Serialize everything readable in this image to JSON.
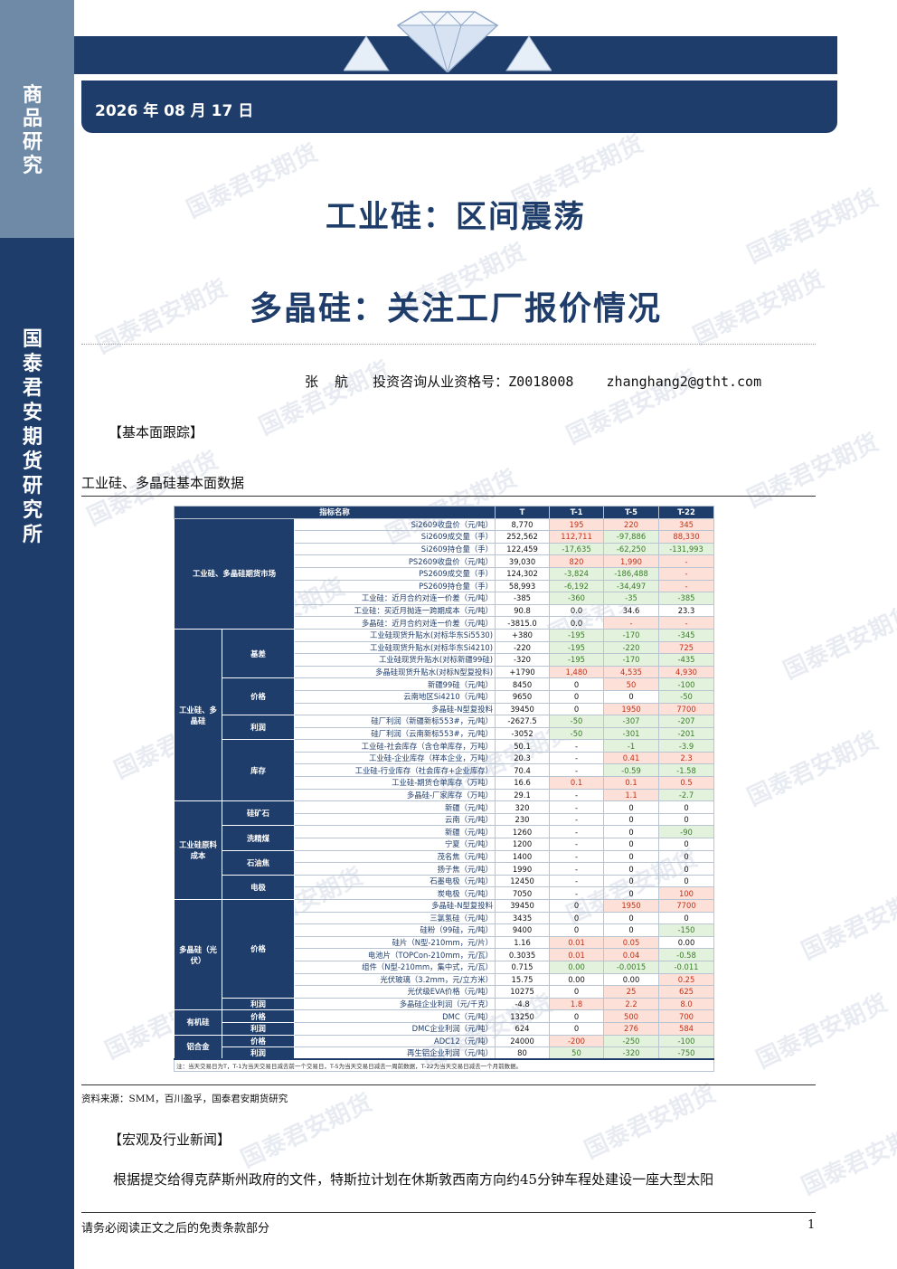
{
  "sidebar": {
    "label_top": "商品研究",
    "label_bottom": "国泰君安期货研究所"
  },
  "header": {
    "date": "2026 年 08 月 17 日"
  },
  "titles": {
    "main": "工业硅：区间震荡",
    "sub": "多晶硅：关注工厂报价情况"
  },
  "author": {
    "line": "张  航   投资咨询从业资格号：Z0018008    zhanghang2@gtht.com"
  },
  "sections": {
    "fundamentals": "【基本面跟踪】",
    "macro": "【宏观及行业新闻】"
  },
  "table_caption": "工业硅、多晶硅基本面数据",
  "table": {
    "headers": [
      "指标名称",
      "T",
      "T-1",
      "T-5",
      "T-22"
    ],
    "cat_futures": "工业硅、多晶硅期货市场",
    "cat_industrial_poly": "工业硅、多晶硅",
    "cat_raw_cost": "工业硅原料成本",
    "cat_poly_pv": "多晶硅（光伏）",
    "cat_organic": "有机硅",
    "cat_aluminum": "铝合金",
    "sub_basis": "基差",
    "sub_price_1": "价格",
    "sub_profit_1": "利润",
    "sub_inventory": "库存",
    "sub_silica": "硅矿石",
    "sub_coal": "洗精煤",
    "sub_coke": "石油焦",
    "sub_electrode": "电极",
    "sub_price_2": "价格",
    "sub_profit_2": "利润",
    "sub_price_3": "价格",
    "sub_profit_3": "利润",
    "sub_price_4": "价格",
    "sub_profit_4": "利润",
    "rows": [
      [
        "Si2609收盘价（元/吨）",
        "8,770",
        "195",
        "220",
        "345"
      ],
      [
        "Si2609成交量（手）",
        "252,562",
        "112,711",
        "-97,886",
        "88,330"
      ],
      [
        "Si2609持仓量（手）",
        "122,459",
        "-17,635",
        "-62,250",
        "-131,993"
      ],
      [
        "PS2609收盘价（元/吨）",
        "39,030",
        "820",
        "1,990",
        "-"
      ],
      [
        "PS2609成交量（手）",
        "124,302",
        "-3,824",
        "-186,488",
        "-"
      ],
      [
        "PS2609持仓量（手）",
        "58,993",
        "-6,192",
        "-34,497",
        "-"
      ],
      [
        "工业硅：近月合约对连一价差（元/吨）",
        "-385",
        "-360",
        "-35",
        "-385"
      ],
      [
        "工业硅：买近月抛连一跨期成本（元/吨）",
        "90.8",
        "0.0",
        "34.6",
        "23.3"
      ],
      [
        "多晶硅：近月合约对连一价差（元/吨）",
        "-3815.0",
        "0.0",
        "-",
        "-"
      ],
      [
        "工业硅现货升贴水(对标华东Si5530)",
        "+380",
        "-195",
        "-170",
        "-345"
      ],
      [
        "工业硅现货升贴水(对标华东Si4210)",
        "-220",
        "-195",
        "-220",
        "725"
      ],
      [
        "工业硅现货升贴水(对标新疆99硅)",
        "-320",
        "-195",
        "-170",
        "-435"
      ],
      [
        "多晶硅现货升贴水(对标N型复投料)",
        "+1790",
        "1,480",
        "4,535",
        "4,930"
      ],
      [
        "新疆99硅（元/吨）",
        "8450",
        "0",
        "50",
        "-100"
      ],
      [
        "云南地区Si4210（元/吨）",
        "9650",
        "0",
        "0",
        "-50"
      ],
      [
        "多晶硅-N型复投料",
        "39450",
        "0",
        "1950",
        "7700"
      ],
      [
        "硅厂利润（新疆新标553#，元/吨）",
        "-2627.5",
        "-50",
        "-307",
        "-207"
      ],
      [
        "硅厂利润（云南新标553#，元/吨）",
        "-3052",
        "-50",
        "-301",
        "-201"
      ],
      [
        "工业硅-社会库存（含仓单库存，万吨）",
        "50.1",
        "-",
        "-1",
        "-3.9"
      ],
      [
        "工业硅-企业库存（样本企业，万吨）",
        "20.3",
        "-",
        "0.41",
        "2.3"
      ],
      [
        "工业硅-行业库存（社会库存+企业库存）",
        "70.4",
        "-",
        "-0.59",
        "-1.58"
      ],
      [
        "工业硅-期货仓单库存（万吨）",
        "16.6",
        "0.1",
        "0.1",
        "0.5"
      ],
      [
        "多晶硅-厂家库存（万吨）",
        "29.1",
        "-",
        "1.1",
        "-2.7"
      ],
      [
        "新疆（元/吨）",
        "320",
        "-",
        "0",
        "0"
      ],
      [
        "云南（元/吨）",
        "230",
        "-",
        "0",
        "0"
      ],
      [
        "新疆（元/吨）",
        "1260",
        "-",
        "0",
        "-90"
      ],
      [
        "宁夏（元/吨）",
        "1200",
        "-",
        "0",
        "0"
      ],
      [
        "茂名焦（元/吨）",
        "1400",
        "-",
        "0",
        "0"
      ],
      [
        "扬子焦（元/吨）",
        "1990",
        "-",
        "0",
        "0"
      ],
      [
        "石墨电极（元/吨）",
        "12450",
        "-",
        "0",
        "0"
      ],
      [
        "炭电极（元/吨）",
        "7050",
        "-",
        "0",
        "100"
      ],
      [
        "多晶硅-N型复投料",
        "39450",
        "0",
        "1950",
        "7700"
      ],
      [
        "三氯氢硅（元/吨）",
        "3435",
        "0",
        "0",
        "0"
      ],
      [
        "硅粉（99硅，元/吨）",
        "9400",
        "0",
        "0",
        "-150"
      ],
      [
        "硅片（N型-210mm，元/片）",
        "1.16",
        "0.01",
        "0.05",
        "0.00"
      ],
      [
        "电池片（TOPCon-210mm，元/瓦）",
        "0.3035",
        "0.01",
        "0.04",
        "-0.58"
      ],
      [
        "组件（N型-210mm，集中式，元/瓦）",
        "0.715",
        "0.00",
        "-0.0015",
        "-0.011"
      ],
      [
        "光伏玻璃（3.2mm，元/立方米）",
        "15.75",
        "0.00",
        "0.00",
        "0.25"
      ],
      [
        "光伏级EVA价格（元/吨）",
        "10275",
        "0",
        "25",
        "625"
      ],
      [
        "多晶硅企业利润（元/千克）",
        "-4.8",
        "1.8",
        "2.2",
        "8.0"
      ],
      [
        "DMC（元/吨）",
        "13250",
        "0",
        "500",
        "700"
      ],
      [
        "DMC企业利润（元/吨）",
        "624",
        "0",
        "276",
        "584"
      ],
      [
        "ADC12（元/吨）",
        "24000",
        "-200",
        "-250",
        "-100"
      ],
      [
        "再生铝企业利润（元/吨）",
        "80",
        "50",
        "-320",
        "-750"
      ]
    ],
    "note": "注：当天交易日为T，T-1为当天交易日减去前一个交易日，T-5为当天交易日减去一周前数据，T-22为当天交易日减去一个月前数据。"
  },
  "source": "资料来源：SMM，百川盈孚，国泰君安期货研究",
  "paragraph": "根据提交给得克萨斯州政府的文件，特斯拉计划在休斯敦西南方向约45分钟车程处建设一座大型太阳",
  "footer": {
    "disclaimer": "请务必阅读正文之后的免责条款部分",
    "page": "1"
  },
  "watermark": "国泰君安期货"
}
